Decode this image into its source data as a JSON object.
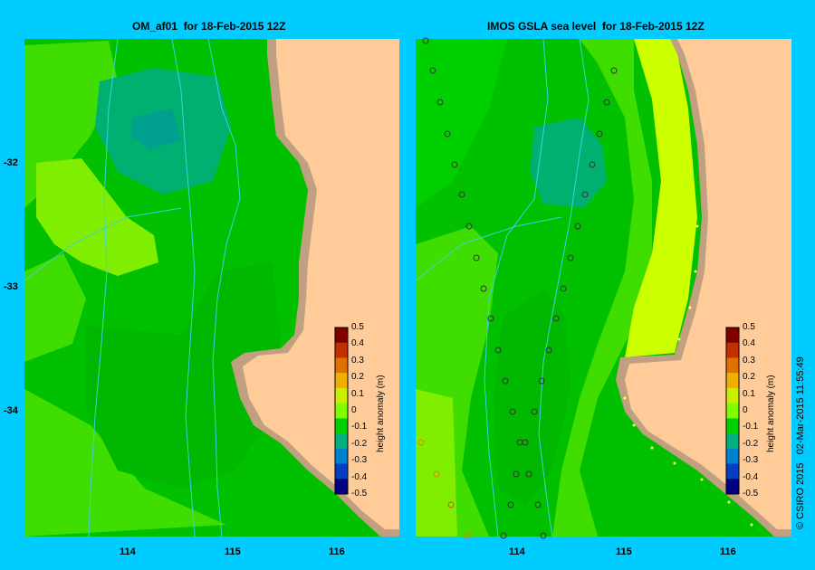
{
  "panels": {
    "left": {
      "title": "OM_af01  for 18-Feb-2015 12Z"
    },
    "right": {
      "title": "IMOS GSLA sea level  for 18-Feb-2015 12Z"
    }
  },
  "axes": {
    "y_ticks": [
      "-32",
      "-33",
      "-34"
    ],
    "x_ticks_left": [
      "114",
      "115",
      "116"
    ],
    "x_ticks_right": [
      "114",
      "115",
      "116"
    ]
  },
  "colorbar": {
    "title": "height anomaly (m)",
    "labels": [
      "0.5",
      "0.4",
      "0.3",
      "0.2",
      "0.1",
      "0",
      "-0.1",
      "-0.2",
      "-0.3",
      "-0.4",
      "-0.5"
    ],
    "colors": [
      "#800000",
      "#c03000",
      "#e07000",
      "#f0b000",
      "#c8f000",
      "#80ff00",
      "#00d000",
      "#00b080",
      "#0080d0",
      "#0040c0",
      "#000080"
    ]
  },
  "copyright": "© CSIRO 2015   02-Mar-2015 11:55:49",
  "colors": {
    "background": "#00ccff",
    "land": "#ffcc99",
    "shore": "#c0a080",
    "green_dark": "#00c000",
    "green_mid": "#00d000",
    "green_light": "#40dd00",
    "lime": "#80ee00",
    "yellow_green": "#ccff00",
    "teal": "#00b070",
    "bathymetry": "#40d0e0"
  }
}
